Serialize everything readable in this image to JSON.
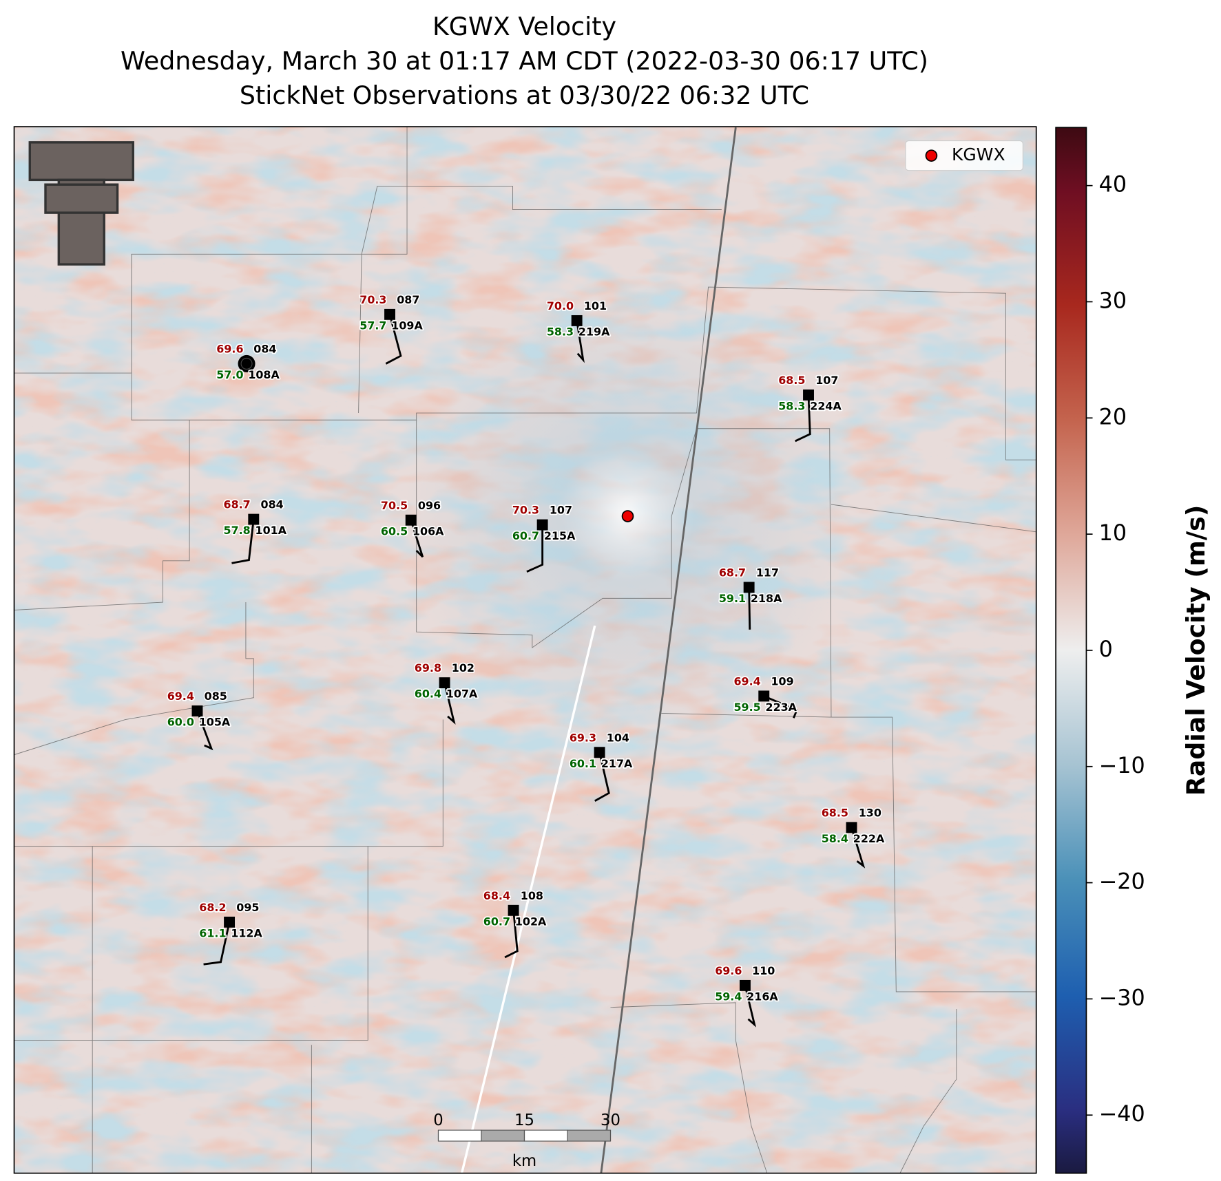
{
  "title_lines": [
    "KGWX Velocity",
    "Wednesday, March 30 at 01:17 AM CDT (2022-03-30 06:17 UTC)",
    "StickNet Observations at 03/30/22 06:32 UTC"
  ],
  "legend": {
    "label": "KGWX"
  },
  "stations": [
    {
      "temperature": "69.6",
      "dewpoint": "57.0",
      "id": "084",
      "probe": "108A"
    },
    {
      "temperature": "70.3",
      "dewpoint": "57.7",
      "id": "087",
      "probe": "109A"
    },
    {
      "temperature": "70.0",
      "dewpoint": "58.3",
      "id": "101",
      "probe": "219A"
    },
    {
      "temperature": "68.5",
      "dewpoint": "58.3",
      "id": "107",
      "probe": "224A"
    },
    {
      "temperature": "68.7",
      "dewpoint": "57.8",
      "id": "084",
      "probe": "101A"
    },
    {
      "temperature": "70.5",
      "dewpoint": "60.5",
      "id": "096",
      "probe": "106A"
    },
    {
      "temperature": "70.3",
      "dewpoint": "60.7",
      "id": "107",
      "probe": "215A"
    },
    {
      "temperature": "68.7",
      "dewpoint": "59.1",
      "id": "117",
      "probe": "218A"
    },
    {
      "temperature": "69.8",
      "dewpoint": "60.4",
      "id": "102",
      "probe": "107A"
    },
    {
      "temperature": "69.4",
      "dewpoint": "60.0",
      "id": "085",
      "probe": "105A"
    },
    {
      "temperature": "69.4",
      "dewpoint": "59.5",
      "id": "109",
      "probe": "223A"
    },
    {
      "temperature": "69.3",
      "dewpoint": "60.1",
      "id": "104",
      "probe": "217A"
    },
    {
      "temperature": "68.5",
      "dewpoint": "58.4",
      "id": "130",
      "probe": "222A"
    },
    {
      "temperature": "68.2",
      "dewpoint": "61.1",
      "id": "095",
      "probe": "112A"
    },
    {
      "temperature": "68.4",
      "dewpoint": "60.7",
      "id": "108",
      "probe": "102A"
    },
    {
      "temperature": "69.6",
      "dewpoint": "59.4",
      "id": "110",
      "probe": "216A"
    }
  ],
  "scale_bar": {
    "ticks": [
      0,
      15,
      30
    ],
    "unit": "km"
  },
  "colorbar": {
    "label": "Radial Velocity (m/s)",
    "range": [
      -45,
      45
    ],
    "ticks": [
      40,
      30,
      20,
      10,
      0,
      {
        "value": -10,
        "label": "−10"
      },
      {
        "value": -20,
        "label": "−20"
      },
      {
        "value": -30,
        "label": "−30"
      },
      {
        "value": -40,
        "label": "−40"
      }
    ]
  }
}
